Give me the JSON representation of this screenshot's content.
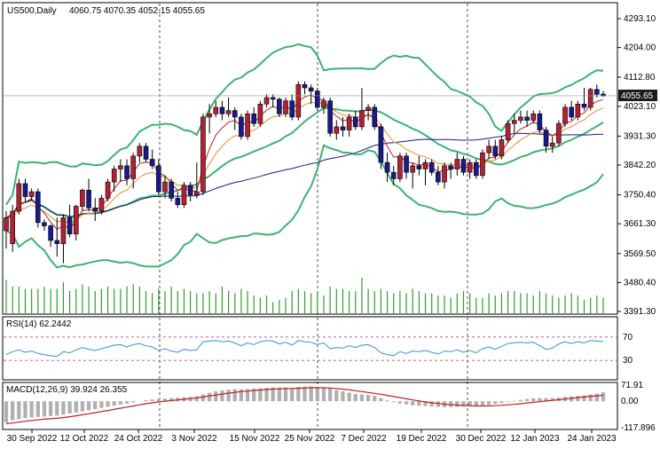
{
  "chart_data": {
    "type": "candlestick",
    "symbol_label": "US500,Daily",
    "ohlc_label": "4060.75 4070.35 4052.15 4055.65",
    "last_price": "4055.65",
    "price_ticks": [
      "4293.10",
      "4204.00",
      "4112.80",
      "4023.10",
      "3931.30",
      "3842.20",
      "3750.40",
      "3661.30",
      "3569.50",
      "3480.40",
      "3391.30"
    ],
    "date_labels": [
      "30 Sep 2022",
      "12 Oct 2022",
      "24 Oct 2022",
      "3 Nov 2022",
      "15 Nov 2022",
      "25 Nov 2022",
      "7 Dec 2022",
      "19 Dec 2022",
      "30 Dec 2022",
      "12 Jan 2023",
      "24 Jan 2023"
    ],
    "price_range": [
      3391.3,
      4293.1
    ],
    "candles": [
      {
        "o": 3640,
        "h": 3700,
        "l": 3585,
        "c": 3680
      },
      {
        "o": 3600,
        "h": 3720,
        "l": 3575,
        "c": 3700
      },
      {
        "o": 3700,
        "h": 3800,
        "l": 3690,
        "c": 3785
      },
      {
        "o": 3785,
        "h": 3800,
        "l": 3730,
        "c": 3745
      },
      {
        "o": 3745,
        "h": 3770,
        "l": 3735,
        "c": 3760
      },
      {
        "o": 3760,
        "h": 3770,
        "l": 3650,
        "c": 3665
      },
      {
        "o": 3665,
        "h": 3675,
        "l": 3640,
        "c": 3655
      },
      {
        "o": 3655,
        "h": 3660,
        "l": 3590,
        "c": 3610
      },
      {
        "o": 3610,
        "h": 3680,
        "l": 3560,
        "c": 3600
      },
      {
        "o": 3600,
        "h": 3690,
        "l": 3540,
        "c": 3680
      },
      {
        "o": 3680,
        "h": 3720,
        "l": 3620,
        "c": 3630
      },
      {
        "o": 3630,
        "h": 3720,
        "l": 3610,
        "c": 3715
      },
      {
        "o": 3715,
        "h": 3770,
        "l": 3700,
        "c": 3765
      },
      {
        "o": 3765,
        "h": 3800,
        "l": 3700,
        "c": 3710
      },
      {
        "o": 3710,
        "h": 3740,
        "l": 3670,
        "c": 3700
      },
      {
        "o": 3700,
        "h": 3750,
        "l": 3690,
        "c": 3740
      },
      {
        "o": 3740,
        "h": 3800,
        "l": 3730,
        "c": 3790
      },
      {
        "o": 3790,
        "h": 3840,
        "l": 3760,
        "c": 3830
      },
      {
        "o": 3830,
        "h": 3860,
        "l": 3790,
        "c": 3840
      },
      {
        "o": 3840,
        "h": 3860,
        "l": 3780,
        "c": 3800
      },
      {
        "o": 3800,
        "h": 3880,
        "l": 3770,
        "c": 3870
      },
      {
        "o": 3870,
        "h": 3910,
        "l": 3850,
        "c": 3900
      },
      {
        "o": 3900,
        "h": 3910,
        "l": 3850,
        "c": 3860
      },
      {
        "o": 3860,
        "h": 3890,
        "l": 3830,
        "c": 3840
      },
      {
        "o": 3840,
        "h": 3860,
        "l": 3750,
        "c": 3760
      },
      {
        "o": 3760,
        "h": 3810,
        "l": 3740,
        "c": 3790
      },
      {
        "o": 3790,
        "h": 3800,
        "l": 3730,
        "c": 3740
      },
      {
        "o": 3740,
        "h": 3760,
        "l": 3710,
        "c": 3720
      },
      {
        "o": 3720,
        "h": 3790,
        "l": 3710,
        "c": 3780
      },
      {
        "o": 3780,
        "h": 3790,
        "l": 3730,
        "c": 3750
      },
      {
        "o": 3750,
        "h": 3850,
        "l": 3740,
        "c": 3760
      },
      {
        "o": 3760,
        "h": 4000,
        "l": 3750,
        "c": 3990
      },
      {
        "o": 3990,
        "h": 4030,
        "l": 3940,
        "c": 4000
      },
      {
        "o": 4000,
        "h": 4040,
        "l": 3990,
        "c": 4020
      },
      {
        "o": 4020,
        "h": 4040,
        "l": 3980,
        "c": 4000
      },
      {
        "o": 4000,
        "h": 4050,
        "l": 3990,
        "c": 4010
      },
      {
        "o": 4010,
        "h": 4020,
        "l": 3950,
        "c": 3990
      },
      {
        "o": 3990,
        "h": 4000,
        "l": 3920,
        "c": 3930
      },
      {
        "o": 3930,
        "h": 4010,
        "l": 3920,
        "c": 4000
      },
      {
        "o": 4000,
        "h": 4020,
        "l": 3960,
        "c": 3970
      },
      {
        "o": 3970,
        "h": 4040,
        "l": 3960,
        "c": 4030
      },
      {
        "o": 4030,
        "h": 4060,
        "l": 4020,
        "c": 4050
      },
      {
        "o": 4050,
        "h": 4060,
        "l": 4020,
        "c": 4045
      },
      {
        "o": 4045,
        "h": 4050,
        "l": 3990,
        "c": 4000
      },
      {
        "o": 4000,
        "h": 4050,
        "l": 3990,
        "c": 4040
      },
      {
        "o": 4040,
        "h": 4060,
        "l": 3980,
        "c": 3990
      },
      {
        "o": 3990,
        "h": 4100,
        "l": 3980,
        "c": 4090
      },
      {
        "o": 4090,
        "h": 4100,
        "l": 4060,
        "c": 4080
      },
      {
        "o": 4080,
        "h": 4090,
        "l": 4030,
        "c": 4070
      },
      {
        "o": 4070,
        "h": 4080,
        "l": 4010,
        "c": 4020
      },
      {
        "o": 4020,
        "h": 4050,
        "l": 4000,
        "c": 4040
      },
      {
        "o": 4040,
        "h": 4050,
        "l": 3930,
        "c": 3940
      },
      {
        "o": 3940,
        "h": 3980,
        "l": 3920,
        "c": 3960
      },
      {
        "o": 3960,
        "h": 3990,
        "l": 3930,
        "c": 3950
      },
      {
        "o": 3950,
        "h": 4000,
        "l": 3930,
        "c": 3990
      },
      {
        "o": 3990,
        "h": 4010,
        "l": 3950,
        "c": 3960
      },
      {
        "o": 3960,
        "h": 4080,
        "l": 3950,
        "c": 4010
      },
      {
        "o": 4010,
        "h": 4030,
        "l": 3980,
        "c": 4020
      },
      {
        "o": 4020,
        "h": 4030,
        "l": 3950,
        "c": 3960
      },
      {
        "o": 3960,
        "h": 3970,
        "l": 3830,
        "c": 3850
      },
      {
        "o": 3850,
        "h": 3880,
        "l": 3790,
        "c": 3820
      },
      {
        "o": 3820,
        "h": 3840,
        "l": 3780,
        "c": 3800
      },
      {
        "o": 3800,
        "h": 3880,
        "l": 3790,
        "c": 3870
      },
      {
        "o": 3870,
        "h": 3880,
        "l": 3800,
        "c": 3820
      },
      {
        "o": 3820,
        "h": 3850,
        "l": 3770,
        "c": 3840
      },
      {
        "o": 3840,
        "h": 3870,
        "l": 3810,
        "c": 3830
      },
      {
        "o": 3830,
        "h": 3860,
        "l": 3780,
        "c": 3850
      },
      {
        "o": 3850,
        "h": 3860,
        "l": 3810,
        "c": 3820
      },
      {
        "o": 3820,
        "h": 3840,
        "l": 3780,
        "c": 3790
      },
      {
        "o": 3790,
        "h": 3850,
        "l": 3770,
        "c": 3840
      },
      {
        "o": 3840,
        "h": 3850,
        "l": 3800,
        "c": 3830
      },
      {
        "o": 3830,
        "h": 3880,
        "l": 3810,
        "c": 3860
      },
      {
        "o": 3860,
        "h": 3870,
        "l": 3810,
        "c": 3820
      },
      {
        "o": 3820,
        "h": 3860,
        "l": 3800,
        "c": 3850
      },
      {
        "o": 3850,
        "h": 3860,
        "l": 3800,
        "c": 3810
      },
      {
        "o": 3810,
        "h": 3890,
        "l": 3800,
        "c": 3880
      },
      {
        "o": 3880,
        "h": 3920,
        "l": 3860,
        "c": 3900
      },
      {
        "o": 3900,
        "h": 3920,
        "l": 3860,
        "c": 3870
      },
      {
        "o": 3870,
        "h": 3930,
        "l": 3860,
        "c": 3920
      },
      {
        "o": 3920,
        "h": 3980,
        "l": 3910,
        "c": 3970
      },
      {
        "o": 3970,
        "h": 4000,
        "l": 3940,
        "c": 3980
      },
      {
        "o": 3980,
        "h": 4010,
        "l": 3970,
        "c": 3990
      },
      {
        "o": 3990,
        "h": 4010,
        "l": 3960,
        "c": 3980
      },
      {
        "o": 3980,
        "h": 4010,
        "l": 3970,
        "c": 4000
      },
      {
        "o": 4000,
        "h": 4010,
        "l": 3940,
        "c": 3950
      },
      {
        "o": 3950,
        "h": 3960,
        "l": 3880,
        "c": 3900
      },
      {
        "o": 3900,
        "h": 3930,
        "l": 3880,
        "c": 3910
      },
      {
        "o": 3910,
        "h": 3980,
        "l": 3900,
        "c": 3970
      },
      {
        "o": 3970,
        "h": 4030,
        "l": 3960,
        "c": 4020
      },
      {
        "o": 4020,
        "h": 4040,
        "l": 3980,
        "c": 3990
      },
      {
        "o": 3990,
        "h": 4040,
        "l": 3980,
        "c": 4030
      },
      {
        "o": 4030,
        "h": 4080,
        "l": 4010,
        "c": 4020
      },
      {
        "o": 4020,
        "h": 4080,
        "l": 4010,
        "c": 4075
      },
      {
        "o": 4075,
        "h": 4090,
        "l": 4050,
        "c": 4060
      },
      {
        "o": 4060.75,
        "h": 4070.35,
        "l": 4052.15,
        "c": 4055.65
      }
    ],
    "volume": [
      15,
      12,
      12,
      11,
      11,
      11,
      12,
      11,
      11,
      14,
      10,
      11,
      13,
      12,
      10,
      11,
      12,
      11,
      11,
      12,
      13,
      12,
      10,
      9,
      11,
      10,
      12,
      10,
      11,
      10,
      9,
      9,
      10,
      9,
      12,
      10,
      9,
      11,
      10,
      8,
      7,
      8,
      5,
      6,
      7,
      10,
      11,
      10,
      9,
      10,
      8,
      12,
      11,
      11,
      10,
      10,
      16,
      11,
      10,
      11,
      10,
      9,
      10,
      9,
      11,
      10,
      9,
      9,
      8,
      8,
      7,
      9,
      10,
      9,
      7,
      7,
      9,
      8,
      9,
      10,
      10,
      9,
      9,
      8,
      10,
      9,
      8,
      7,
      8,
      9,
      8,
      6,
      7,
      8,
      7
    ],
    "rsi_label": "RSI(14) 62.2442",
    "rsi_levels": [
      "70",
      "30"
    ],
    "rsi_ticks": [
      "70",
      "30"
    ],
    "rsi": [
      40,
      45,
      48,
      44,
      46,
      42,
      40,
      38,
      37,
      45,
      43,
      48,
      52,
      49,
      47,
      50,
      53,
      56,
      57,
      53,
      57,
      59,
      55,
      53,
      47,
      50,
      46,
      44,
      49,
      47,
      48,
      62,
      63,
      64,
      62,
      63,
      60,
      55,
      60,
      57,
      62,
      64,
      63,
      58,
      61,
      56,
      64,
      62,
      61,
      57,
      60,
      50,
      52,
      51,
      55,
      52,
      56,
      57,
      52,
      43,
      40,
      38,
      45,
      42,
      46,
      45,
      47,
      44,
      41,
      46,
      45,
      48,
      44,
      47,
      43,
      50,
      53,
      49,
      54,
      59,
      60,
      61,
      60,
      61,
      55,
      49,
      51,
      58,
      62,
      59,
      62,
      60,
      64,
      63,
      62.2
    ],
    "macd_label": "MACD(12,26,9) 39.924 26.355",
    "macd_ticks": [
      "71.91",
      "0.00",
      "-117.896"
    ],
    "macd_range": [
      -117.896,
      71.91
    ],
    "macd_hist": [
      -95,
      -85,
      -80,
      -75,
      -72,
      -70,
      -68,
      -66,
      -64,
      -60,
      -55,
      -50,
      -45,
      -40,
      -35,
      -30,
      -25,
      -20,
      -15,
      -10,
      -5,
      0,
      5,
      8,
      10,
      12,
      14,
      16,
      18,
      20,
      22,
      30,
      38,
      44,
      48,
      52,
      54,
      54,
      55,
      56,
      58,
      60,
      62,
      62,
      62,
      60,
      64,
      66,
      66,
      64,
      62,
      58,
      50,
      44,
      38,
      32,
      30,
      28,
      24,
      14,
      4,
      -4,
      -10,
      -14,
      -18,
      -20,
      -22,
      -24,
      -25,
      -26,
      -26,
      -25,
      -24,
      -23,
      -22,
      -20,
      -16,
      -12,
      -8,
      -3,
      2,
      6,
      10,
      13,
      14,
      14,
      14,
      16,
      20,
      22,
      24,
      26,
      30,
      34,
      39.9
    ],
    "macd_signal": [
      -100,
      -97,
      -93,
      -89,
      -86,
      -83,
      -80,
      -78,
      -76,
      -73,
      -69,
      -65,
      -60,
      -56,
      -51,
      -46,
      -41,
      -36,
      -31,
      -26,
      -21,
      -16,
      -11,
      -7,
      -3,
      0,
      3,
      6,
      9,
      12,
      15,
      19,
      24,
      28,
      32,
      36,
      40,
      43,
      45,
      48,
      50,
      52,
      54,
      55,
      56,
      57,
      58,
      59,
      60,
      61,
      60,
      59,
      57,
      54,
      51,
      47,
      43,
      39,
      35,
      31,
      26,
      21,
      16,
      11,
      6,
      1,
      -3,
      -7,
      -10,
      -13,
      -15,
      -17,
      -19,
      -20,
      -21,
      -21,
      -21,
      -20,
      -18,
      -16,
      -14,
      -11,
      -8,
      -5,
      -2,
      1,
      4,
      7,
      10,
      13,
      16,
      19,
      22,
      24,
      26.4
    ],
    "ma_fast_label": "",
    "ma_slow_label": ""
  }
}
